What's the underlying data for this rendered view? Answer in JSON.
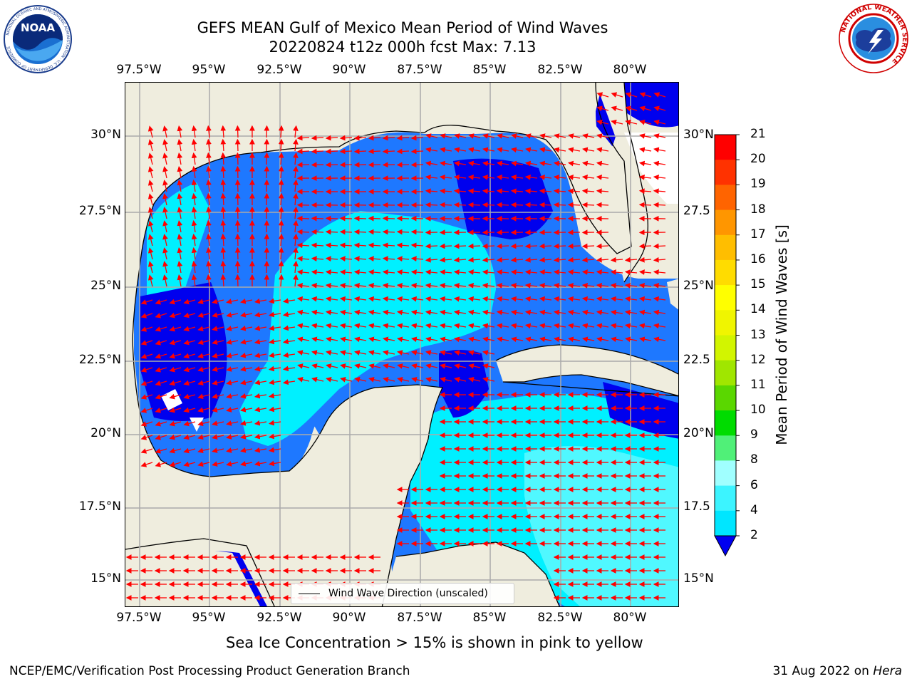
{
  "title": {
    "line1": "GEFS MEAN Gulf of Mexico Mean Period of Wind Waves",
    "line2": "20220824 t12z 000h fcst   Max: 7.13"
  },
  "logos": {
    "left": {
      "icon": "noaa-logo",
      "text": "NOAA",
      "ring_text": "NATIONAL OCEANIC AND ATMOSPHERIC ADMINISTRATION · U.S. DEPARTMENT OF COMMERCE"
    },
    "right": {
      "icon": "nws-logo",
      "ring_text": "NATIONAL WEATHER SERVICE"
    }
  },
  "axes": {
    "x_ticks": [
      "97.5°W",
      "95°W",
      "92.5°W",
      "90°W",
      "87.5°W",
      "85°W",
      "82.5°W",
      "80°W"
    ],
    "y_ticks_left": [
      "30°N",
      "27.5°N",
      "25°N",
      "22.5°N",
      "20°N",
      "17.5°N",
      "15°N"
    ],
    "y_ticks_right": [
      "30°N",
      "27.5",
      "25°N",
      "22.5",
      "20°N",
      "17.5",
      "15°N"
    ]
  },
  "legend": {
    "label": "Wind Wave Direction (unscaled)"
  },
  "colorbar": {
    "label": "Mean Period of Wind Waves [s]",
    "ticks": [
      "21",
      "20",
      "19",
      "18",
      "17",
      "16",
      "15",
      "14",
      "13",
      "12",
      "11",
      "10",
      "9",
      "8",
      "6",
      "4",
      "2"
    ],
    "colors": [
      "#0000f0",
      "#1e78ff",
      "#00e6ff",
      "#3cf4ff",
      "#a0ffff",
      "#50f078",
      "#00dc00",
      "#5ad700",
      "#a0e600",
      "#d2f500",
      "#f0f500",
      "#ffff00",
      "#ffdc00",
      "#ffbe00",
      "#ff9600",
      "#ff6400",
      "#ff3200",
      "#ff0000"
    ]
  },
  "map_colors": {
    "land": "#efedde",
    "level_2_4": "#0000ee",
    "level_4_6": "#1e78ff",
    "level_6_8": "#00f0ff",
    "level_8_9": "#50f8ff",
    "arrows": "#ff0000"
  },
  "note": "Sea Ice Concentration > 15% is shown in pink to yellow",
  "footer": {
    "left": "NCEP/EMC/Verification Post Processing Product Generation Branch",
    "date": "31 Aug 2022 on",
    "machine": "Hera"
  }
}
